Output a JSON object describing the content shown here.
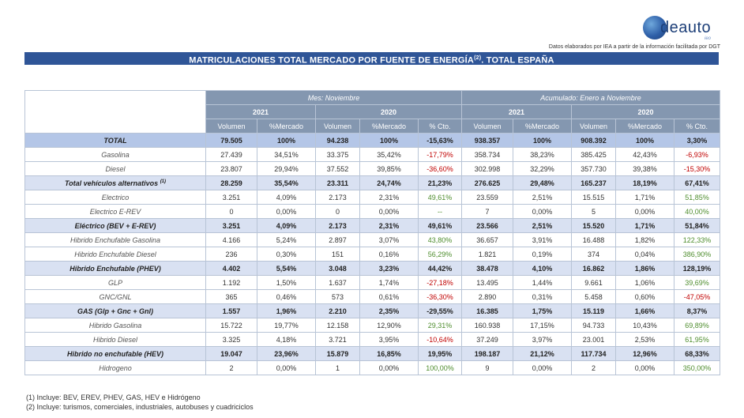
{
  "logo": {
    "text": "deauto",
    "sub": "ieo"
  },
  "source": "Datos elaborados por IEA a partir de la información facilitada por DGT",
  "title": {
    "main": "MATRICULACIONES TOTAL MERCADO POR FUENTE DE ENERGÍA",
    "sup": "(2)",
    "tail": ". TOTAL ESPAÑA"
  },
  "header": {
    "group1": "Mes: Noviembre",
    "group2": "Acumulado: Enero a Noviembre",
    "year_a": "2021",
    "year_b": "2020",
    "cols": [
      "Volumen",
      "%Mercado",
      "Volumen",
      "%Mercado",
      "% Cto.",
      "Volumen",
      "%Mercado",
      "Volumen",
      "%Mercado",
      "% Cto."
    ]
  },
  "rows": [
    {
      "label": "TOTAL",
      "type": "total",
      "v": [
        "79.505",
        "100%",
        "94.238",
        "100%",
        "-15,63%",
        "938.357",
        "100%",
        "908.392",
        "100%",
        "3,30%"
      ]
    },
    {
      "label": "Gasolina",
      "type": "normal",
      "v": [
        "27.439",
        "34,51%",
        "33.375",
        "35,42%",
        "-17,79%",
        "358.734",
        "38,23%",
        "385.425",
        "42,43%",
        "-6,93%"
      ]
    },
    {
      "label": "Diesel",
      "type": "normal",
      "v": [
        "23.807",
        "29,94%",
        "37.552",
        "39,85%",
        "-36,60%",
        "302.998",
        "32,29%",
        "357.730",
        "39,38%",
        "-15,30%"
      ]
    },
    {
      "label": "Total vehículos alternativos",
      "sup": "(1)",
      "type": "bold",
      "v": [
        "28.259",
        "35,54%",
        "23.311",
        "24,74%",
        "21,23%",
        "276.625",
        "29,48%",
        "165.237",
        "18,19%",
        "67,41%"
      ]
    },
    {
      "label": "Electrico",
      "type": "normal",
      "v": [
        "3.251",
        "4,09%",
        "2.173",
        "2,31%",
        "49,61%",
        "23.559",
        "2,51%",
        "15.515",
        "1,71%",
        "51,85%"
      ]
    },
    {
      "label": "Electrico E-REV",
      "type": "normal",
      "v": [
        "0",
        "0,00%",
        "0",
        "0,00%",
        "--",
        "7",
        "0,00%",
        "5",
        "0,00%",
        "40,00%"
      ]
    },
    {
      "label": "Eléctrico (BEV + E-REV)",
      "type": "bold",
      "v": [
        "3.251",
        "4,09%",
        "2.173",
        "2,31%",
        "49,61%",
        "23.566",
        "2,51%",
        "15.520",
        "1,71%",
        "51,84%"
      ]
    },
    {
      "label": "Hibrido Enchufable Gasolina",
      "type": "normal",
      "v": [
        "4.166",
        "5,24%",
        "2.897",
        "3,07%",
        "43,80%",
        "36.657",
        "3,91%",
        "16.488",
        "1,82%",
        "122,33%"
      ]
    },
    {
      "label": "Hibrido Enchufable Diesel",
      "type": "normal",
      "v": [
        "236",
        "0,30%",
        "151",
        "0,16%",
        "56,29%",
        "1.821",
        "0,19%",
        "374",
        "0,04%",
        "386,90%"
      ]
    },
    {
      "label": "Hibrido Enchufable (PHEV)",
      "type": "bold",
      "v": [
        "4.402",
        "5,54%",
        "3.048",
        "3,23%",
        "44,42%",
        "38.478",
        "4,10%",
        "16.862",
        "1,86%",
        "128,19%"
      ]
    },
    {
      "label": "GLP",
      "type": "normal",
      "v": [
        "1.192",
        "1,50%",
        "1.637",
        "1,74%",
        "-27,18%",
        "13.495",
        "1,44%",
        "9.661",
        "1,06%",
        "39,69%"
      ]
    },
    {
      "label": "GNC/GNL",
      "type": "normal",
      "v": [
        "365",
        "0,46%",
        "573",
        "0,61%",
        "-36,30%",
        "2.890",
        "0,31%",
        "5.458",
        "0,60%",
        "-47,05%"
      ]
    },
    {
      "label": "GAS (Glp + Gnc + Gnl)",
      "type": "bold",
      "v": [
        "1.557",
        "1,96%",
        "2.210",
        "2,35%",
        "-29,55%",
        "16.385",
        "1,75%",
        "15.119",
        "1,66%",
        "8,37%"
      ]
    },
    {
      "label": "Hibrido Gasolina",
      "type": "normal",
      "v": [
        "15.722",
        "19,77%",
        "12.158",
        "12,90%",
        "29,31%",
        "160.938",
        "17,15%",
        "94.733",
        "10,43%",
        "69,89%"
      ]
    },
    {
      "label": "Hibrido Diesel",
      "type": "normal",
      "v": [
        "3.325",
        "4,18%",
        "3.721",
        "3,95%",
        "-10,64%",
        "37.249",
        "3,97%",
        "23.001",
        "2,53%",
        "61,95%"
      ]
    },
    {
      "label": "Hibrido no enchufable (HEV)",
      "type": "bold",
      "v": [
        "19.047",
        "23,96%",
        "15.879",
        "16,85%",
        "19,95%",
        "198.187",
        "21,12%",
        "117.734",
        "12,96%",
        "68,33%"
      ]
    },
    {
      "label": "Hidrogeno",
      "type": "normal",
      "v": [
        "2",
        "0,00%",
        "1",
        "0,00%",
        "100,00%",
        "9",
        "0,00%",
        "2",
        "0,00%",
        "350,00%"
      ]
    }
  ],
  "notes": [
    "(1) Incluye: BEV, EREV, PHEV, GAS, HEV e Hidrógeno",
    "(2) Incluye: turismos, comerciales, industriales, autobuses y cuadriciclos"
  ],
  "colors": {
    "banner": "#2f5597",
    "header": "#8497b0",
    "bold_row": "#d9e1f2",
    "total_row": "#b4c6e7",
    "negative": "#c00000",
    "positive": "#4e8d2d"
  }
}
